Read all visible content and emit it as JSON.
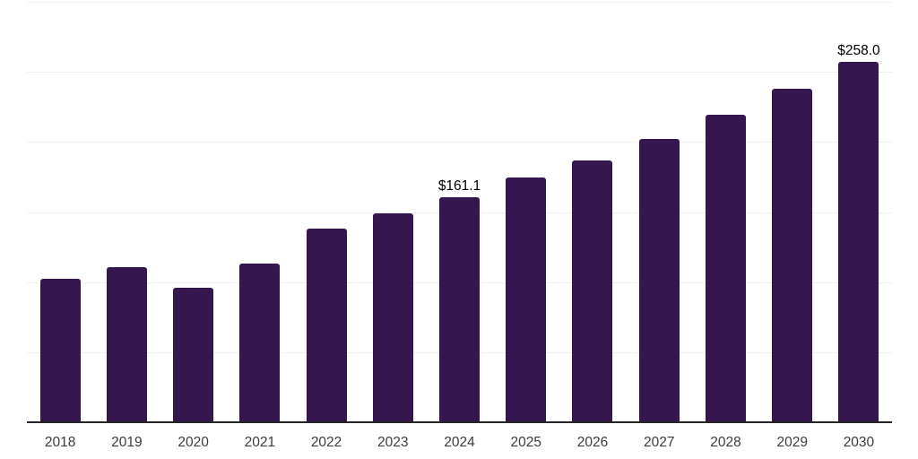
{
  "chart_data": {
    "type": "bar",
    "title": "",
    "xlabel": "",
    "ylabel": "",
    "categories": [
      "2018",
      "2019",
      "2020",
      "2021",
      "2022",
      "2023",
      "2024",
      "2025",
      "2026",
      "2027",
      "2028",
      "2029",
      "2030"
    ],
    "values": [
      102.8,
      111.0,
      96.3,
      113.8,
      138.8,
      150.0,
      161.1,
      175.0,
      187.6,
      203.1,
      220.1,
      238.6,
      258.0
    ],
    "point_labels": [
      "",
      "",
      "",
      "",
      "",
      "",
      "$161.1",
      "",
      "",
      "",
      "",
      "",
      "$258.0"
    ],
    "ylim": [
      0,
      300
    ],
    "gridline_step": 50,
    "grid": "horizontal",
    "y_tick_labels": "none",
    "legend_position": "none",
    "colors": {
      "bar": "#35164e",
      "gridline": "#efefef",
      "axis_line": "#262626",
      "tick_label": "#3c3c3c",
      "point_label": "#000000",
      "background": "#ffffff"
    }
  }
}
